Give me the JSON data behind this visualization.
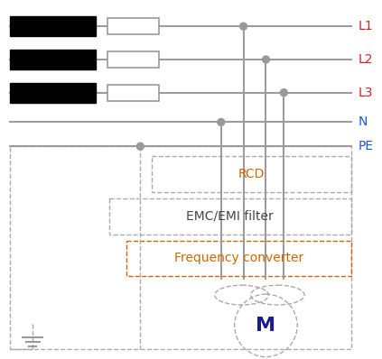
{
  "bg_color": "#ffffff",
  "line_color": "#999999",
  "dashed_color": "#aaaaaa",
  "rcd_color": "#cc6600",
  "emc_color": "#444444",
  "freq_color": "#cc6600",
  "motor_color": "#1a1a99",
  "line_label_colors": [
    "#cc2222",
    "#cc2222",
    "#cc2222",
    "#2255cc",
    "#2255cc"
  ],
  "line_labels": [
    "L1",
    "L2",
    "L3",
    "N",
    "PE"
  ],
  "figsize": [
    4.23,
    3.98
  ],
  "dpi": 100
}
